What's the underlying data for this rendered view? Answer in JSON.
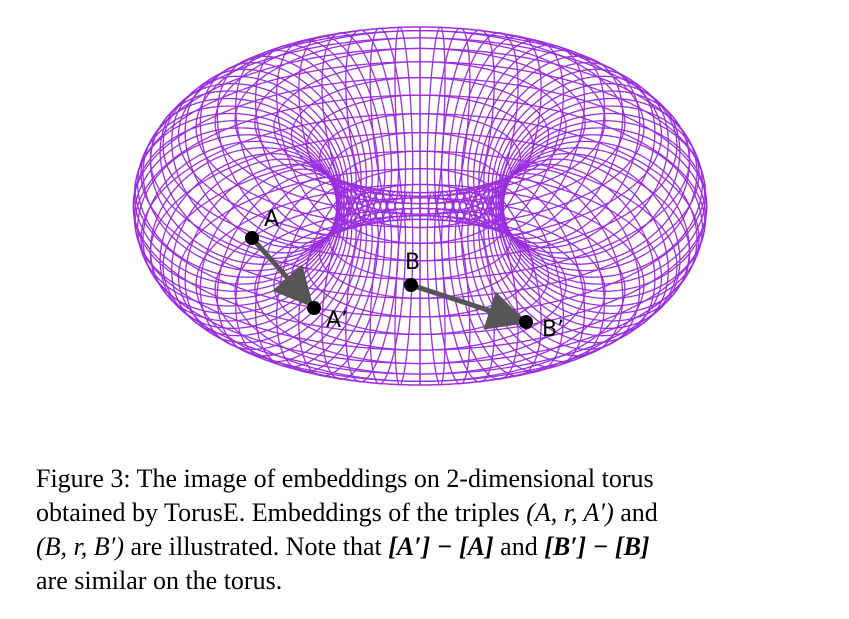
{
  "figure": {
    "points": {
      "A": {
        "label": "A"
      },
      "A_prime": {
        "label": "A’"
      },
      "B": {
        "label": "B"
      },
      "B_prime": {
        "label": "B’"
      }
    },
    "colors": {
      "mesh": "#9a2ee0",
      "point": "#000000",
      "arrow": "#555555"
    }
  },
  "caption": {
    "prefix": "Figure 3:",
    "line1_rest": " The image of embeddings on 2-dimensional torus",
    "line2_a": "obtained by TorusE. Embeddings of the triples ",
    "triple1": "(A, r, A′)",
    "line2_b": " and",
    "triple2": "(B, r, B′)",
    "line3_a": " are illustrated. Note that ",
    "diff1": "[A′] − [A]",
    "line3_b": " and ",
    "diff2": "[B′] − [B]",
    "line4": "are similar on the torus."
  }
}
